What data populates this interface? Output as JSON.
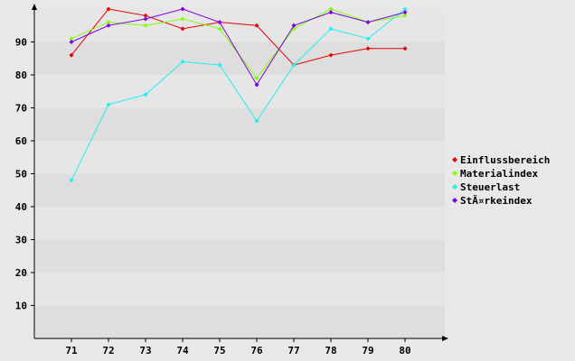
{
  "chart_data": {
    "type": "line",
    "title": "",
    "xlabel": "",
    "ylabel": "",
    "categories": [
      "71",
      "72",
      "73",
      "74",
      "75",
      "76",
      "77",
      "78",
      "79",
      "80"
    ],
    "ylim": [
      0,
      100
    ],
    "yticks": [
      10,
      20,
      30,
      40,
      50,
      60,
      70,
      80,
      90
    ],
    "grid": "horizontal bands",
    "legend_position": "right",
    "series": [
      {
        "name": "Einflussbereich",
        "color": "#e60000",
        "values": [
          86,
          100,
          98,
          94,
          96,
          95,
          83,
          86,
          88,
          88
        ]
      },
      {
        "name": "Materialindex",
        "color": "#80ff00",
        "values": [
          91,
          96,
          95,
          97,
          94,
          79,
          94,
          100,
          96,
          98
        ]
      },
      {
        "name": "Steuerlast",
        "color": "#22eeee",
        "values": [
          48,
          71,
          74,
          84,
          83,
          66,
          83,
          94,
          91,
          100
        ]
      },
      {
        "name": "Stärkeindex",
        "legend_text": "StÃ¤rkeindex",
        "color": "#7f00e6",
        "values": [
          90,
          95,
          97,
          100,
          96,
          77,
          95,
          99,
          96,
          99
        ]
      }
    ]
  }
}
